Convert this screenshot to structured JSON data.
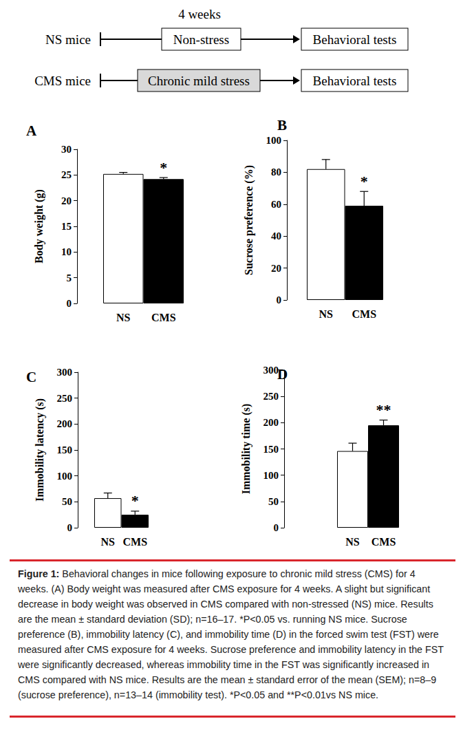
{
  "diagram": {
    "duration": "4 weeks",
    "rows": [
      {
        "group": "NS mice",
        "treatment": "Non-stress",
        "outcome": "Behavioral tests"
      },
      {
        "group": "CMS mice",
        "treatment": "Chronic mild stress",
        "outcome": "Behavioral tests"
      }
    ]
  },
  "chart_data": [
    {
      "type": "bar",
      "title": "A",
      "ylabel": "Body weight (g)",
      "categories": [
        "NS",
        "CMS"
      ],
      "values": [
        25.2,
        24.2
      ],
      "errors": [
        0.3,
        0.3
      ],
      "colors": [
        "#ffffff",
        "#000000"
      ],
      "ylim": [
        0,
        30
      ],
      "yticks": [
        0,
        5,
        10,
        15,
        20,
        25,
        30
      ],
      "grid": false,
      "annotations": [
        {
          "category": "CMS",
          "text": "*"
        }
      ]
    },
    {
      "type": "bar",
      "title": "B",
      "ylabel": "Sucrose preference (%)",
      "categories": [
        "NS",
        "CMS"
      ],
      "values": [
        82,
        59
      ],
      "errors": [
        6,
        9
      ],
      "colors": [
        "#ffffff",
        "#000000"
      ],
      "ylim": [
        0,
        100
      ],
      "yticks": [
        0,
        20,
        40,
        60,
        80,
        100
      ],
      "grid": false,
      "annotations": [
        {
          "category": "CMS",
          "text": "*"
        }
      ]
    },
    {
      "type": "bar",
      "title": "C",
      "ylabel": "Immobility latency (s)",
      "categories": [
        "NS",
        "CMS"
      ],
      "values": [
        57,
        25
      ],
      "errors": [
        10,
        7
      ],
      "colors": [
        "#ffffff",
        "#000000"
      ],
      "ylim": [
        0,
        300
      ],
      "yticks": [
        0,
        50,
        100,
        150,
        200,
        250,
        300
      ],
      "grid": false,
      "annotations": [
        {
          "category": "CMS",
          "text": "*"
        }
      ]
    },
    {
      "type": "bar",
      "title": "D",
      "ylabel": "Immobility time (s)",
      "categories": [
        "NS",
        "CMS"
      ],
      "values": [
        146,
        195
      ],
      "errors": [
        15,
        10
      ],
      "colors": [
        "#ffffff",
        "#000000"
      ],
      "ylim": [
        0,
        300
      ],
      "yticks": [
        0,
        50,
        100,
        150,
        200,
        250,
        300
      ],
      "grid": false,
      "annotations": [
        {
          "category": "CMS",
          "text": "**"
        }
      ]
    }
  ],
  "caption": {
    "label": "Figure 1:",
    "text": "Behavioral changes in mice following exposure to chronic mild stress (CMS) for 4 weeks. (A) Body weight was measured after CMS exposure for 4 weeks. A slight but significant decrease in body weight was observed in CMS compared with non-stressed (NS) mice. Results are the mean ± standard deviation (SD); n=16–17. *P<0.05 vs. running NS mice. Sucrose preference (B), immobility latency (C), and immobility time (D) in the forced swim test (FST) were measured after CMS exposure for 4 weeks. Sucrose preference and immobility latency in the FST were significantly decreased, whereas immobility time in the FST was significantly increased in CMS compared with NS mice. Results are the mean ± standard error of the mean (SEM); n=8–9 (sucrose preference), n=13–14 (immobility test). *P<0.05 and **P<0.01vs NS mice."
  }
}
